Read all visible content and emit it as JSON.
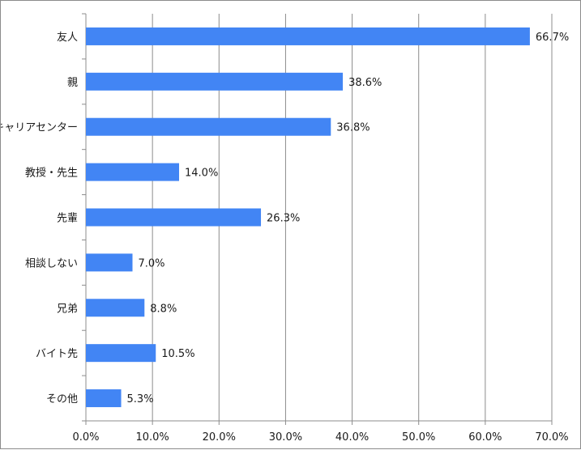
{
  "chart_data": {
    "type": "bar",
    "orientation": "horizontal",
    "categories": [
      "友人",
      "親",
      "キャリアセンター",
      "教授・先生",
      "先輩",
      "相談しない",
      "兄弟",
      "バイト先",
      "その他"
    ],
    "values": [
      66.7,
      38.6,
      36.8,
      14.0,
      26.3,
      7.0,
      8.8,
      10.5,
      5.3
    ],
    "value_labels": [
      "66.7%",
      "38.6%",
      "36.8%",
      "14.0%",
      "26.3%",
      "7.0%",
      "8.8%",
      "10.5%",
      "5.3%"
    ],
    "x_ticks": [
      "0.0%",
      "10.0%",
      "20.0%",
      "30.0%",
      "40.0%",
      "50.0%",
      "60.0%",
      "70.0%"
    ],
    "xlim": [
      0,
      70
    ],
    "grid": true,
    "legend": "none",
    "bar_color": "#4285f4"
  }
}
